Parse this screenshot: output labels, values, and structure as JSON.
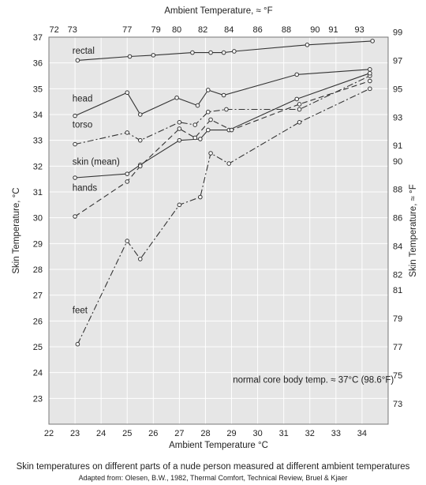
{
  "chart_data": {
    "type": "line",
    "x_axis_bottom": {
      "label": "Ambient Temperature °C",
      "range": [
        22,
        35
      ],
      "ticks": [
        "22",
        "23",
        "24",
        "25",
        "26",
        "27",
        "28",
        "29",
        "30",
        "31",
        "32",
        "33",
        "34"
      ]
    },
    "x_axis_top": {
      "label": "Ambient Temperature, ≈ °F",
      "ticks": [
        {
          "label": "72",
          "at_c": 22.2
        },
        {
          "label": "73",
          "at_c": 22.9
        },
        {
          "label": "77",
          "at_c": 25.0
        },
        {
          "label": "79",
          "at_c": 26.1
        },
        {
          "label": "80",
          "at_c": 26.9
        },
        {
          "label": "82",
          "at_c": 27.9
        },
        {
          "label": "84",
          "at_c": 28.9
        },
        {
          "label": "86",
          "at_c": 30.0
        },
        {
          "label": "88",
          "at_c": 31.1
        },
        {
          "label": "90",
          "at_c": 32.2
        },
        {
          "label": "91",
          "at_c": 32.9
        },
        {
          "label": "93",
          "at_c": 33.9
        }
      ]
    },
    "y_axis_left": {
      "label": "Skin Temperature, °C",
      "range": [
        22,
        37
      ],
      "ticks": [
        "23",
        "24",
        "25",
        "26",
        "27",
        "28",
        "29",
        "30",
        "31",
        "32",
        "33",
        "34",
        "35",
        "36",
        "37"
      ]
    },
    "y_axis_right": {
      "label": "Skin Temperature, ≈ °F",
      "ticks": [
        {
          "label": "73",
          "at_c": 22.8
        },
        {
          "label": "75",
          "at_c": 23.9
        },
        {
          "label": "77",
          "at_c": 25.0
        },
        {
          "label": "79",
          "at_c": 26.1
        },
        {
          "label": "81",
          "at_c": 27.2
        },
        {
          "label": "82",
          "at_c": 27.8
        },
        {
          "label": "84",
          "at_c": 28.9
        },
        {
          "label": "86",
          "at_c": 30.0
        },
        {
          "label": "88",
          "at_c": 31.1
        },
        {
          "label": "90",
          "at_c": 32.2
        },
        {
          "label": "91",
          "at_c": 32.8
        },
        {
          "label": "93",
          "at_c": 33.9
        },
        {
          "label": "95",
          "at_c": 35.0
        },
        {
          "label": "97",
          "at_c": 36.1
        },
        {
          "label": "99",
          "at_c": 37.2
        }
      ]
    },
    "grid": true,
    "series": [
      {
        "name": "rectal",
        "style": "solid",
        "points": [
          [
            23.1,
            36.1
          ],
          [
            25.1,
            36.25
          ],
          [
            26,
            36.3
          ],
          [
            27.5,
            36.4
          ],
          [
            28.2,
            36.4
          ],
          [
            28.7,
            36.4
          ],
          [
            29.1,
            36.45
          ],
          [
            31.9,
            36.7
          ],
          [
            34.4,
            36.85
          ]
        ],
        "label_at": [
          22.9,
          36.35
        ]
      },
      {
        "name": "head",
        "style": "solid",
        "points": [
          [
            23,
            33.95
          ],
          [
            25,
            34.85
          ],
          [
            25.5,
            34
          ],
          [
            26.9,
            34.65
          ],
          [
            27.7,
            34.35
          ],
          [
            28.1,
            34.95
          ],
          [
            28.7,
            34.75
          ],
          [
            31.5,
            35.55
          ],
          [
            34.3,
            35.75
          ]
        ],
        "label_at": [
          22.9,
          34.5
        ]
      },
      {
        "name": "torso",
        "style": "dashdot",
        "points": [
          [
            23,
            32.85
          ],
          [
            25,
            33.3
          ],
          [
            25.5,
            33
          ],
          [
            27,
            33.7
          ],
          [
            27.6,
            33.6
          ],
          [
            28.1,
            34.1
          ],
          [
            28.8,
            34.2
          ],
          [
            31.6,
            34.2
          ],
          [
            34.3,
            35.5
          ]
        ],
        "label_at": [
          22.9,
          33.5
        ]
      },
      {
        "name": "skin (mean)",
        "style": "solid",
        "points": [
          [
            23,
            31.55
          ],
          [
            25,
            31.7
          ],
          [
            25.5,
            32.05
          ],
          [
            27,
            33
          ],
          [
            27.8,
            33.05
          ],
          [
            28.1,
            33.4
          ],
          [
            28.9,
            33.4
          ],
          [
            31.5,
            34.6
          ],
          [
            34.3,
            35.6
          ]
        ],
        "label_at": [
          22.9,
          32.05
        ]
      },
      {
        "name": "hands",
        "style": "dashed",
        "points": [
          [
            23,
            30.05
          ],
          [
            25,
            31.4
          ],
          [
            25.5,
            32
          ],
          [
            27,
            33.45
          ],
          [
            27.6,
            33.1
          ],
          [
            28.2,
            33.8
          ],
          [
            29,
            33.4
          ],
          [
            31.6,
            34.4
          ],
          [
            34.3,
            35.3
          ]
        ],
        "label_at": [
          22.9,
          31.05
        ]
      },
      {
        "name": "feet",
        "style": "dashdot",
        "points": [
          [
            23.1,
            25.1
          ],
          [
            25,
            29.1
          ],
          [
            25.5,
            28.4
          ],
          [
            27,
            30.5
          ],
          [
            27.8,
            30.8
          ],
          [
            28.2,
            32.5
          ],
          [
            28.9,
            32.1
          ],
          [
            31.6,
            33.7
          ],
          [
            34.3,
            35
          ]
        ],
        "label_at": [
          22.9,
          26.3
        ]
      }
    ],
    "annotations": [
      {
        "text": "normal core body temp. ≈ 37°C (98.6°F)",
        "at": [
          29.05,
          23.6
        ]
      }
    ],
    "title": "",
    "caption": "Skin temperatures on different parts of a nude person measured at different ambient temperatures",
    "source": "Adapted from: Olesen, B.W., 1982, Thermal Comfort, Technical Review, Bruel & Kjaer"
  }
}
